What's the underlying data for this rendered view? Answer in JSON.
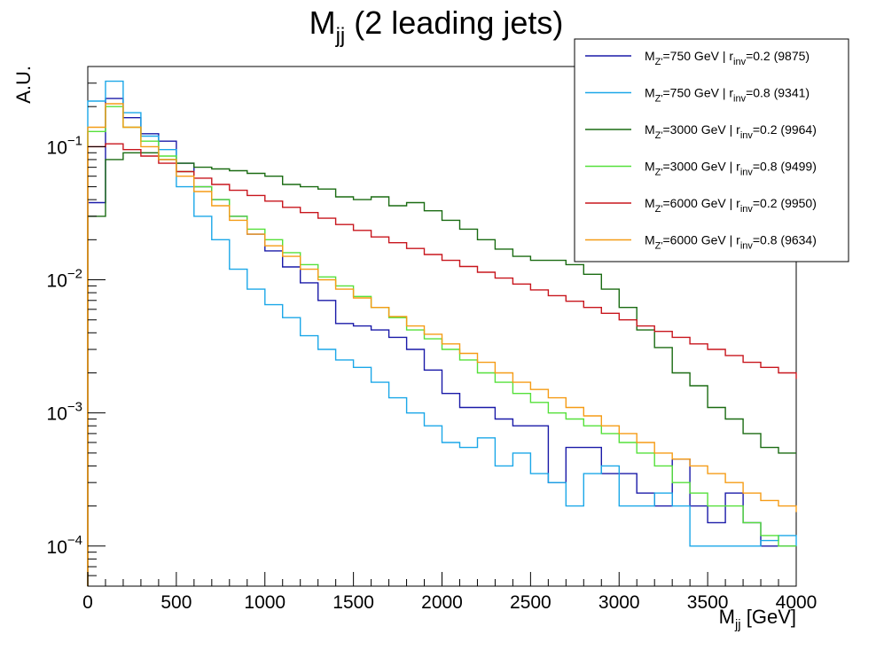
{
  "chart_data": {
    "type": "line",
    "title": {
      "main": "M",
      "sub": "jj",
      "rest": " (2 leading jets)"
    },
    "xlabel": {
      "main": "M",
      "sub": "jj",
      "rest": " [GeV]"
    },
    "ylabel": "A.U.",
    "xlim": [
      0,
      4000
    ],
    "ylim": [
      5e-05,
      0.4
    ],
    "yscale": "log",
    "bin_width": 100,
    "xticks": [
      "0",
      "500",
      "1000",
      "1500",
      "2000",
      "2500",
      "3000",
      "3500",
      "4000"
    ],
    "yticks": [
      {
        "base": "10",
        "exp": "−1",
        "value": 0.1
      },
      {
        "base": "10",
        "exp": "−2",
        "value": 0.01
      },
      {
        "base": "10",
        "exp": "−3",
        "value": 0.001
      },
      {
        "base": "10",
        "exp": "−4",
        "value": 0.0001
      }
    ],
    "legend_position": "top-right",
    "grid": false,
    "series": [
      {
        "label": {
          "a": "M",
          "asub": "Z'",
          "b": "=750 GeV | r",
          "bsub": "inv",
          "c": "=0.2 (9875)"
        },
        "color": "#1a1aa8",
        "values": [
          0.038,
          0.23,
          0.165,
          0.125,
          0.11,
          0.075,
          0.05,
          0.04,
          0.03,
          0.022,
          0.0165,
          0.0125,
          0.0095,
          0.007,
          0.0047,
          0.0045,
          0.0042,
          0.0037,
          0.003,
          0.0021,
          0.0014,
          0.0011,
          0.0011,
          0.0009,
          0.0008,
          0.0008,
          0.0003,
          0.00055,
          0.00055,
          0.00035,
          0.00035,
          0.00025,
          0.0002,
          0.00045,
          0.0002,
          0.00015,
          0.00025,
          0.00015,
          0.0001,
          0.0001,
          0.0001
        ]
      },
      {
        "label": {
          "a": "M",
          "asub": "Z'",
          "b": "=750 GeV | r",
          "bsub": "inv",
          "c": "=0.8 (9341)"
        },
        "color": "#1ba7e8",
        "values": [
          0.22,
          0.31,
          0.18,
          0.12,
          0.095,
          0.05,
          0.03,
          0.02,
          0.012,
          0.0085,
          0.0065,
          0.0052,
          0.0038,
          0.003,
          0.0025,
          0.0022,
          0.0017,
          0.0013,
          0.001,
          0.0008,
          0.0006,
          0.00055,
          0.00065,
          0.0004,
          0.0005,
          0.00035,
          0.0003,
          0.0002,
          0.00035,
          0.0004,
          0.0002,
          0.0002,
          0.00025,
          0.0002,
          0.0001,
          0.0001,
          0.0001,
          0.0001,
          0.00011,
          0.00012,
          0.0001
        ]
      },
      {
        "label": {
          "a": "M",
          "asub": "Z'",
          "b": "=3000 GeV | r",
          "bsub": "inv",
          "c": "=0.2 (9964)"
        },
        "color": "#1a6b12",
        "values": [
          0.03,
          0.08,
          0.09,
          0.09,
          0.08,
          0.075,
          0.07,
          0.068,
          0.066,
          0.063,
          0.06,
          0.052,
          0.05,
          0.048,
          0.042,
          0.04,
          0.042,
          0.036,
          0.038,
          0.033,
          0.028,
          0.024,
          0.02,
          0.017,
          0.015,
          0.014,
          0.014,
          0.013,
          0.011,
          0.0085,
          0.0062,
          0.0042,
          0.0031,
          0.002,
          0.0016,
          0.0011,
          0.0009,
          0.0007,
          0.00055,
          0.0005,
          0.0005
        ]
      },
      {
        "label": {
          "a": "M",
          "asub": "Z'",
          "b": "=3000 GeV | r",
          "bsub": "inv",
          "c": "=0.8 (9499)"
        },
        "color": "#55e03a",
        "values": [
          0.13,
          0.2,
          0.14,
          0.11,
          0.085,
          0.065,
          0.05,
          0.04,
          0.03,
          0.024,
          0.02,
          0.016,
          0.013,
          0.0105,
          0.009,
          0.0075,
          0.0062,
          0.0052,
          0.0042,
          0.0036,
          0.003,
          0.0025,
          0.002,
          0.0017,
          0.0014,
          0.0012,
          0.001,
          0.0009,
          0.0008,
          0.0007,
          0.0006,
          0.0005,
          0.0004,
          0.0003,
          0.00025,
          0.0002,
          0.0002,
          0.00015,
          0.00012,
          0.0001,
          0.0001
        ]
      },
      {
        "label": {
          "a": "M",
          "asub": "Z'",
          "b": "=6000 GeV | r",
          "bsub": "inv",
          "c": "=0.2 (9950)"
        },
        "color": "#c8161d",
        "values": [
          0.1,
          0.105,
          0.095,
          0.085,
          0.075,
          0.065,
          0.058,
          0.052,
          0.047,
          0.043,
          0.039,
          0.035,
          0.032,
          0.029,
          0.026,
          0.0235,
          0.021,
          0.019,
          0.0172,
          0.0155,
          0.014,
          0.0126,
          0.0114,
          0.0103,
          0.0093,
          0.0084,
          0.0076,
          0.0069,
          0.0062,
          0.0056,
          0.005,
          0.0045,
          0.0041,
          0.0037,
          0.0033,
          0.003,
          0.0027,
          0.0024,
          0.0022,
          0.002,
          0.0018
        ]
      },
      {
        "label": {
          "a": "M",
          "asub": "Z'",
          "b": "=6000 GeV | r",
          "bsub": "inv",
          "c": "=0.8 (9634)"
        },
        "color": "#f59c16",
        "values": [
          0.14,
          0.21,
          0.14,
          0.1,
          0.08,
          0.06,
          0.046,
          0.036,
          0.028,
          0.022,
          0.018,
          0.015,
          0.012,
          0.01,
          0.0085,
          0.0073,
          0.0062,
          0.0053,
          0.0045,
          0.0039,
          0.0033,
          0.0028,
          0.0024,
          0.002,
          0.0017,
          0.0015,
          0.0013,
          0.0011,
          0.00095,
          0.0008,
          0.0007,
          0.0006,
          0.0005,
          0.00045,
          0.0004,
          0.00035,
          0.0003,
          0.00025,
          0.00022,
          0.0002,
          0.00018
        ]
      }
    ]
  }
}
